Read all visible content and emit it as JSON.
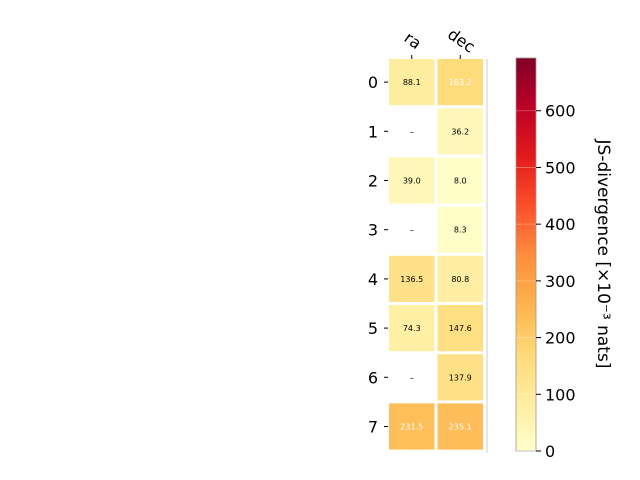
{
  "chart_data": {
    "type": "heatmap",
    "columns": [
      "ra",
      "dec"
    ],
    "rows": [
      "0",
      "1",
      "2",
      "3",
      "4",
      "5",
      "6",
      "7"
    ],
    "values": [
      [
        88.1,
        163.2
      ],
      [
        null,
        36.2
      ],
      [
        39.0,
        8.0
      ],
      [
        null,
        8.3
      ],
      [
        136.5,
        80.8
      ],
      [
        74.3,
        147.6
      ],
      [
        null,
        137.9
      ],
      [
        231.5,
        235.1
      ]
    ],
    "cell_labels": [
      [
        "88.1",
        "163.2"
      ],
      [
        "–",
        "36.2"
      ],
      [
        "39.0",
        "8.0"
      ],
      [
        "–",
        "8.3"
      ],
      [
        "136.5",
        "80.8"
      ],
      [
        "74.3",
        "147.6"
      ],
      [
        "–",
        "137.9"
      ],
      [
        "231.5",
        "235.1"
      ]
    ],
    "colorbar": {
      "label": "JS-divergence [×10⁻³ nats]",
      "range": [
        0,
        693
      ],
      "ticks": [
        0,
        100,
        200,
        300,
        400,
        500,
        600
      ],
      "tick_labels": [
        "0",
        "100",
        "200",
        "300",
        "400",
        "500",
        "600"
      ],
      "colormap": "YlOrRd",
      "colormap_stops": [
        "#ffffcc",
        "#ffeda0",
        "#fed976",
        "#feb24c",
        "#fd8d3c",
        "#fc4e2a",
        "#e31a1c",
        "#bd0026",
        "#800026"
      ]
    },
    "grid": false,
    "legend": "none"
  }
}
